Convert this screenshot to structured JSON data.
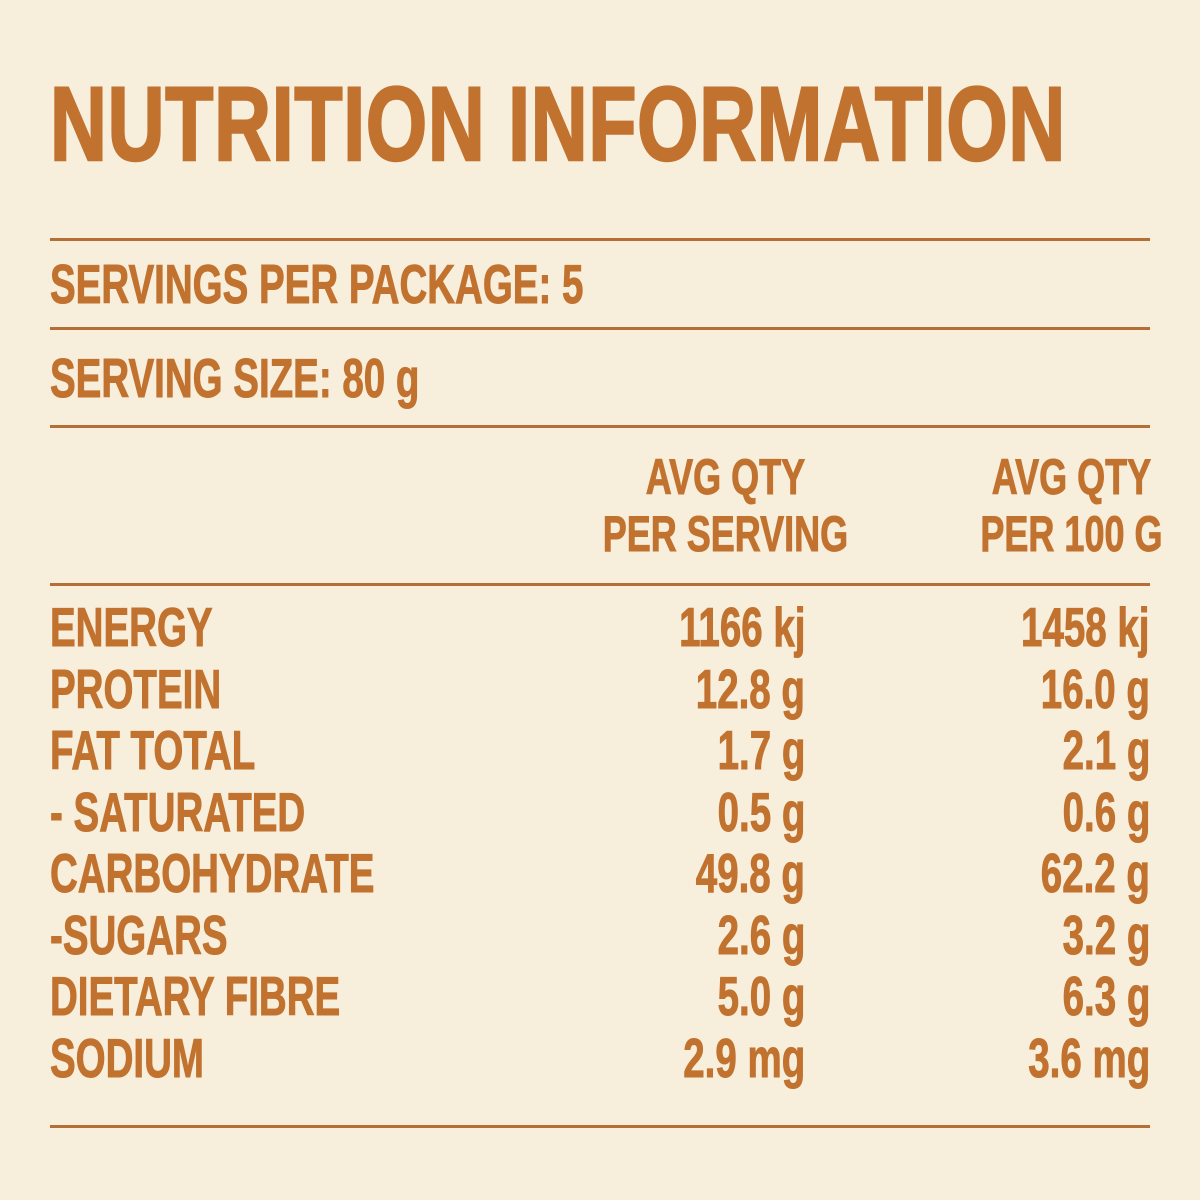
{
  "palette": {
    "background": "#f7eedb",
    "ink": "#c2722f",
    "rule": "#b56e36"
  },
  "title": "NUTRITION INFORMATION",
  "meta": {
    "servings_per_package": {
      "label": "SERVINGS PER PACKAGE:",
      "value": "5"
    },
    "serving_size": {
      "label": "SERVING SIZE:",
      "value": "80 g"
    }
  },
  "table": {
    "columns": [
      {
        "line1": "AVG QTY",
        "line2": "PER SERVING"
      },
      {
        "line1": "AVG QTY",
        "line2": "PER 100 G"
      }
    ],
    "rows": [
      {
        "label": "ENERGY",
        "per_serving": "1166 kj",
        "per_100g": "1458 kj"
      },
      {
        "label": "PROTEIN",
        "per_serving": "12.8 g",
        "per_100g": "16.0 g"
      },
      {
        "label": "FAT TOTAL",
        "per_serving": "1.7 g",
        "per_100g": "2.1 g"
      },
      {
        "label": "- SATURATED",
        "per_serving": "0.5 g",
        "per_100g": "0.6 g"
      },
      {
        "label": "CARBOHYDRATE",
        "per_serving": "49.8 g",
        "per_100g": "62.2 g"
      },
      {
        "label": "-SUGARS",
        "per_serving": "2.6 g",
        "per_100g": "3.2 g"
      },
      {
        "label": "DIETARY FIBRE",
        "per_serving": "5.0 g",
        "per_100g": "6.3 g"
      },
      {
        "label": "SODIUM",
        "per_serving": "2.9 mg",
        "per_100g": "3.6 mg"
      }
    ]
  }
}
